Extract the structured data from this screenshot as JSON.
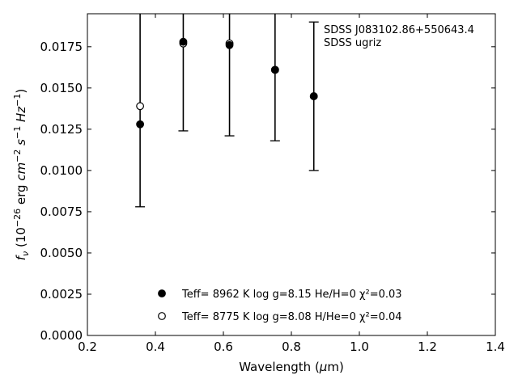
{
  "chart_data": {
    "type": "scatter",
    "title": "",
    "xlabel": "Wavelength (μm)",
    "ylabel": "f_ν (10^-26 erg cm^-2 s^-1 Hz^-1)",
    "xlim": [
      0.2,
      1.4
    ],
    "ylim": [
      0.0,
      0.0195
    ],
    "x_ticks": [
      0.2,
      0.4,
      0.6,
      0.8,
      1.0,
      1.2,
      1.4
    ],
    "x_tick_labels": [
      "0.2",
      "0.4",
      "0.6",
      "0.8",
      "1.0",
      "1.2",
      "1.4"
    ],
    "y_ticks": [
      0.0,
      0.0025,
      0.005,
      0.0075,
      0.01,
      0.0125,
      0.015,
      0.0175
    ],
    "y_tick_labels": [
      "0.0000",
      "0.0025",
      "0.0050",
      "0.0075",
      "0.0100",
      "0.0125",
      "0.0150",
      "0.0175"
    ],
    "grid": false,
    "legend_position": "bottom-center",
    "annotations": [
      "SDSS J083102.86+550643.4",
      "SDSS ugriz"
    ],
    "observed": {
      "x": [
        0.355,
        0.482,
        0.618,
        0.752,
        0.866
      ],
      "y": [
        0.0139,
        0.0177,
        0.0177,
        0.0161,
        0.0145
      ],
      "yerr": [
        0.0061,
        0.0053,
        0.0056,
        0.0043,
        0.0045
      ]
    },
    "series": [
      {
        "name": "Teff= 8962 K log g=8.15 He/H=0 χ²=0.03",
        "marker": "filled",
        "x": [
          0.355,
          0.482,
          0.618,
          0.752,
          0.866
        ],
        "y": [
          0.0128,
          0.0178,
          0.0176,
          0.0161,
          0.0145
        ]
      },
      {
        "name": "Teff= 8775 K log g=8.08 H/He=0 χ²=0.04",
        "marker": "open",
        "x": [
          0.355,
          0.482,
          0.618,
          0.752,
          0.866
        ],
        "y": [
          0.0139,
          0.0177,
          0.0177,
          0.0161,
          0.0145
        ]
      }
    ],
    "colors": {
      "marker": "#000000",
      "axes": "#000000",
      "background": "#ffffff"
    }
  }
}
